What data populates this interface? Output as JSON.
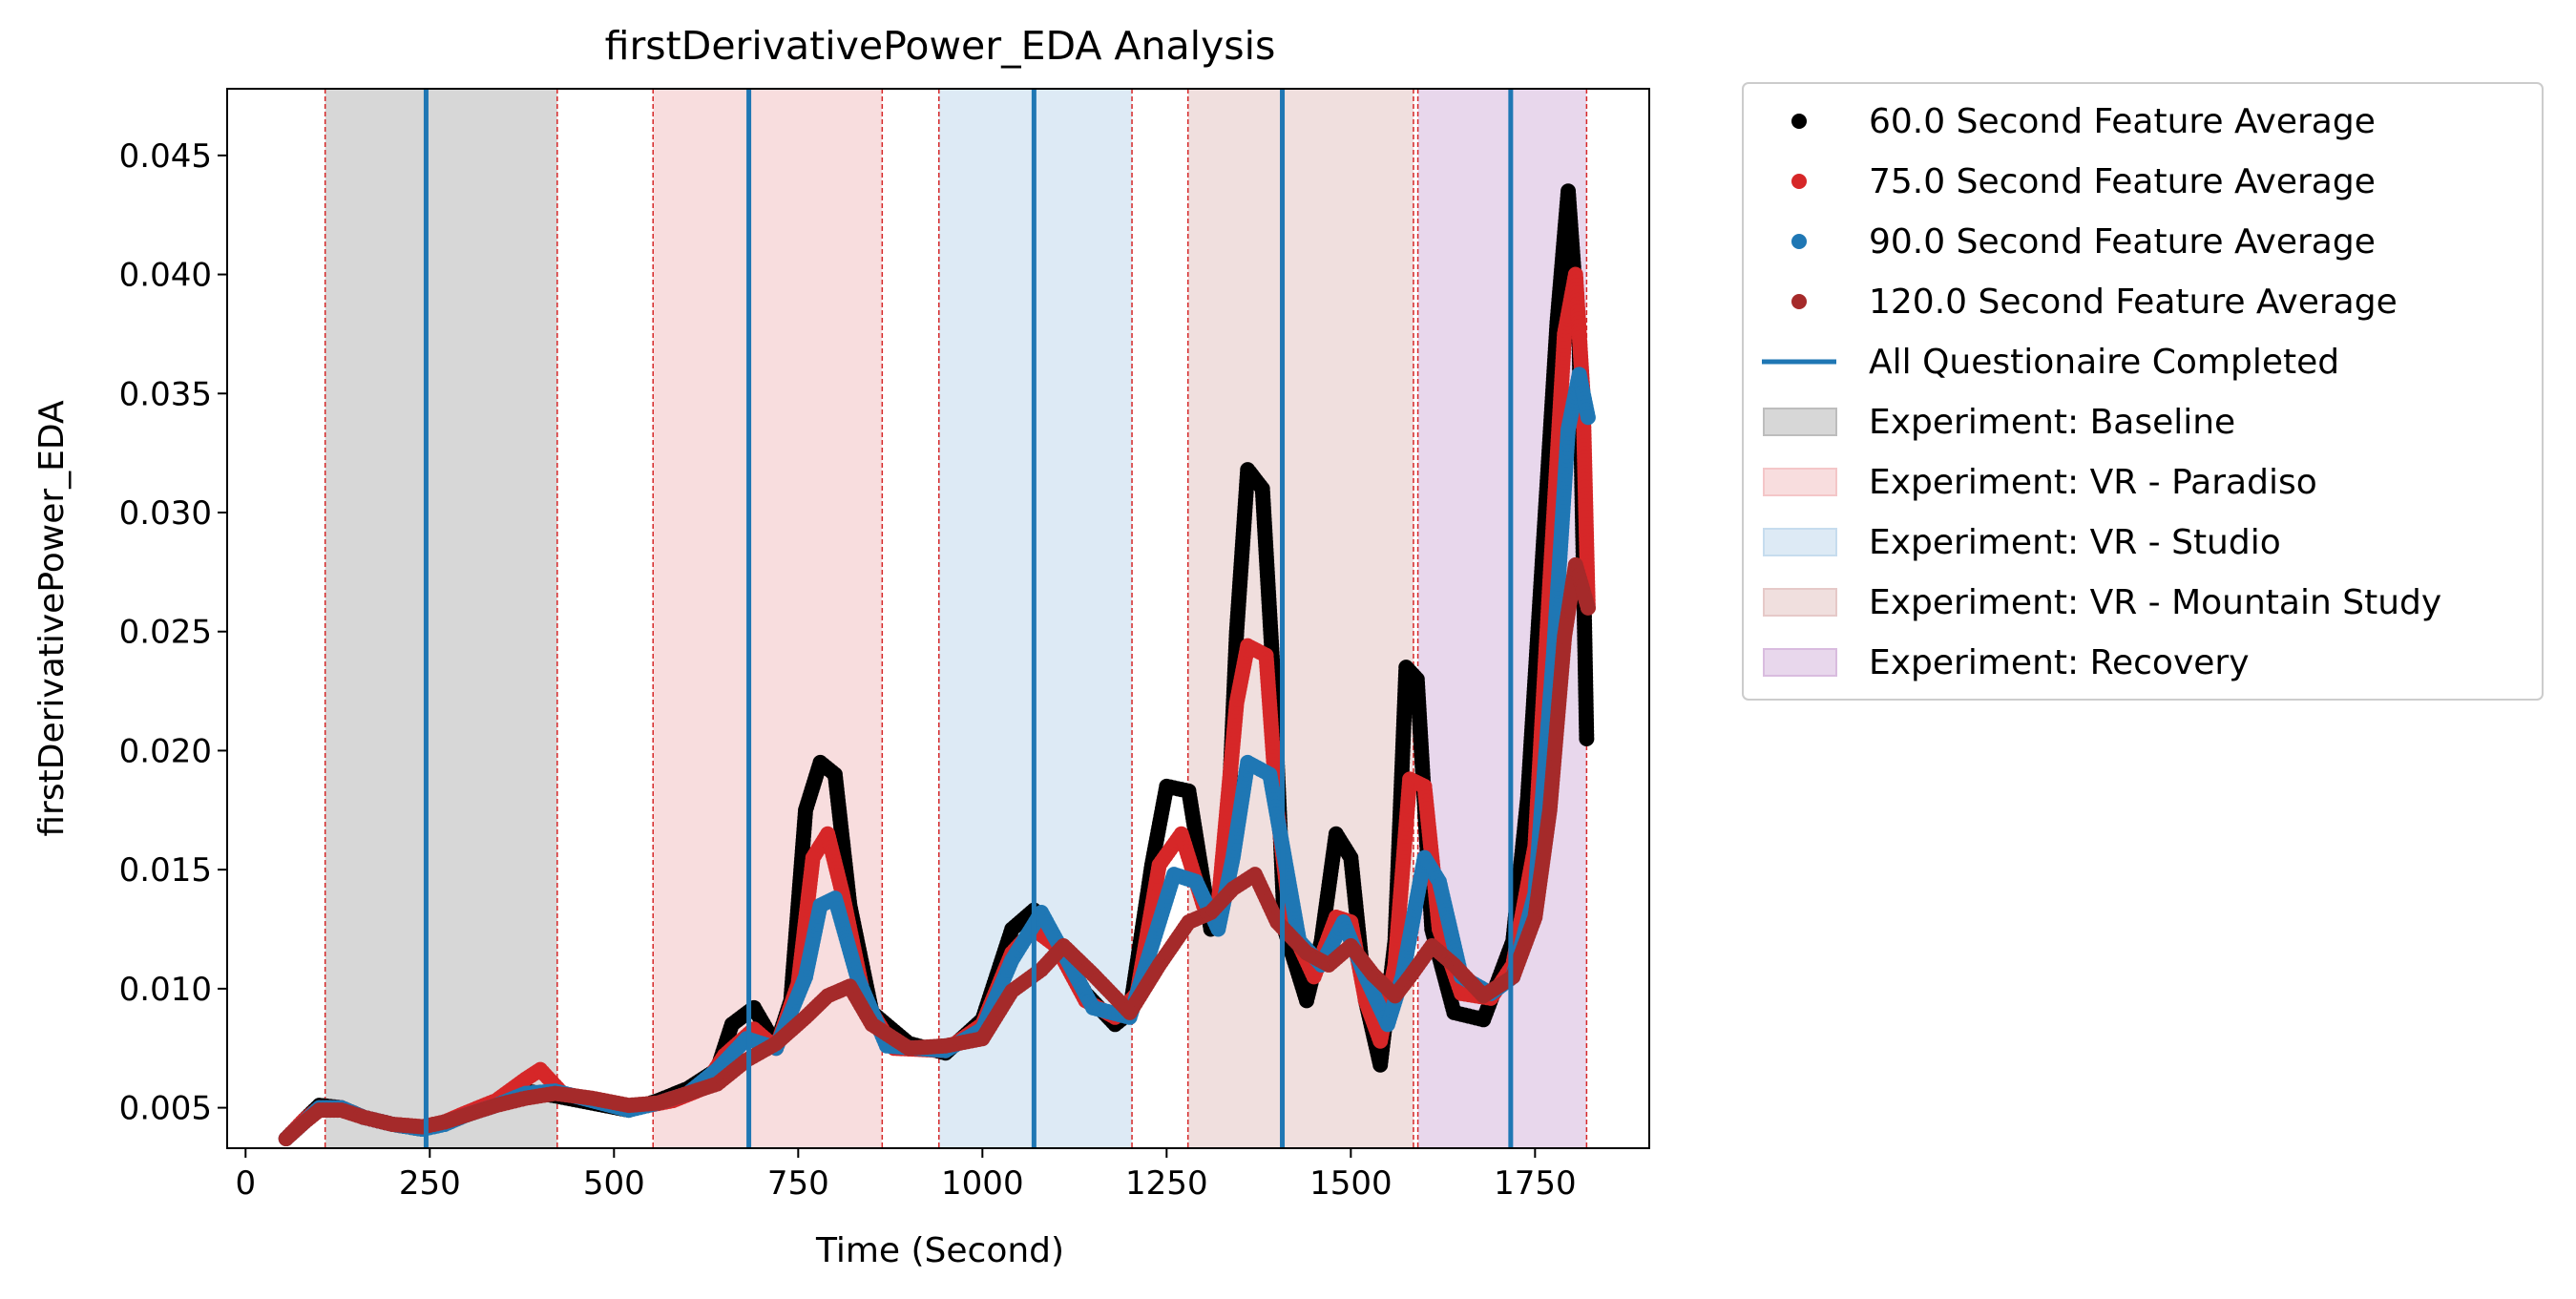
{
  "chart_data": {
    "type": "scatter",
    "title": "firstDerivativePower_EDA Analysis",
    "xlabel": "Time (Second)",
    "ylabel": "firstDerivativePower_EDA",
    "xlim": [
      -25,
      1905
    ],
    "ylim": [
      0.0033,
      0.0478
    ],
    "x_ticks": [
      0,
      250,
      500,
      750,
      1000,
      1250,
      1500,
      1750
    ],
    "x_tick_labels": [
      "0",
      "250",
      "500",
      "750",
      "1000",
      "1250",
      "1500",
      "1750"
    ],
    "y_ticks": [
      0.005,
      0.01,
      0.015,
      0.02,
      0.025,
      0.03,
      0.035,
      0.04,
      0.045
    ],
    "y_tick_labels": [
      "0.005",
      "0.010",
      "0.015",
      "0.020",
      "0.025",
      "0.030",
      "0.035",
      "0.040",
      "0.045"
    ],
    "grid": false,
    "legend_position": "outside-right",
    "series": [
      {
        "name": "60.0 Second Feature Average",
        "color": "#000000",
        "points": [
          [
            55,
            0.0037
          ],
          [
            80,
            0.0045
          ],
          [
            100,
            0.0051
          ],
          [
            130,
            0.005
          ],
          [
            160,
            0.0046
          ],
          [
            200,
            0.0043
          ],
          [
            240,
            0.0041
          ],
          [
            270,
            0.0044
          ],
          [
            300,
            0.0047
          ],
          [
            340,
            0.0052
          ],
          [
            380,
            0.0057
          ],
          [
            420,
            0.0055
          ],
          [
            470,
            0.0052
          ],
          [
            520,
            0.0049
          ],
          [
            560,
            0.0053
          ],
          [
            600,
            0.0058
          ],
          [
            640,
            0.0066
          ],
          [
            660,
            0.0085
          ],
          [
            690,
            0.0092
          ],
          [
            720,
            0.0076
          ],
          [
            740,
            0.0095
          ],
          [
            760,
            0.0175
          ],
          [
            780,
            0.0195
          ],
          [
            800,
            0.019
          ],
          [
            820,
            0.0135
          ],
          [
            850,
            0.009
          ],
          [
            900,
            0.0077
          ],
          [
            950,
            0.0073
          ],
          [
            1000,
            0.0087
          ],
          [
            1040,
            0.0125
          ],
          [
            1070,
            0.0133
          ],
          [
            1100,
            0.012
          ],
          [
            1140,
            0.0098
          ],
          [
            1180,
            0.0085
          ],
          [
            1200,
            0.009
          ],
          [
            1230,
            0.0152
          ],
          [
            1250,
            0.0185
          ],
          [
            1280,
            0.0183
          ],
          [
            1310,
            0.0125
          ],
          [
            1330,
            0.0145
          ],
          [
            1345,
            0.025
          ],
          [
            1360,
            0.0318
          ],
          [
            1380,
            0.031
          ],
          [
            1395,
            0.023
          ],
          [
            1410,
            0.0125
          ],
          [
            1440,
            0.0095
          ],
          [
            1460,
            0.012
          ],
          [
            1480,
            0.0165
          ],
          [
            1500,
            0.0155
          ],
          [
            1520,
            0.0095
          ],
          [
            1540,
            0.0068
          ],
          [
            1560,
            0.012
          ],
          [
            1575,
            0.0235
          ],
          [
            1590,
            0.023
          ],
          [
            1610,
            0.0125
          ],
          [
            1640,
            0.009
          ],
          [
            1680,
            0.0087
          ],
          [
            1720,
            0.012
          ],
          [
            1740,
            0.018
          ],
          [
            1760,
            0.028
          ],
          [
            1780,
            0.038
          ],
          [
            1795,
            0.0435
          ],
          [
            1810,
            0.037
          ],
          [
            1820,
            0.0205
          ]
        ]
      },
      {
        "name": "75.0 Second Feature Average",
        "color": "#d62728",
        "points": [
          [
            55,
            0.0037
          ],
          [
            80,
            0.0045
          ],
          [
            100,
            0.005
          ],
          [
            130,
            0.005
          ],
          [
            160,
            0.0046
          ],
          [
            200,
            0.0043
          ],
          [
            240,
            0.0042
          ],
          [
            270,
            0.0044
          ],
          [
            300,
            0.0048
          ],
          [
            340,
            0.0053
          ],
          [
            380,
            0.0062
          ],
          [
            400,
            0.0066
          ],
          [
            430,
            0.0056
          ],
          [
            480,
            0.0053
          ],
          [
            530,
            0.005
          ],
          [
            580,
            0.0053
          ],
          [
            620,
            0.0058
          ],
          [
            650,
            0.0072
          ],
          [
            690,
            0.0083
          ],
          [
            720,
            0.0075
          ],
          [
            750,
            0.0102
          ],
          [
            770,
            0.0155
          ],
          [
            790,
            0.0165
          ],
          [
            810,
            0.014
          ],
          [
            840,
            0.0095
          ],
          [
            880,
            0.0075
          ],
          [
            950,
            0.0074
          ],
          [
            1000,
            0.0085
          ],
          [
            1040,
            0.0115
          ],
          [
            1070,
            0.0125
          ],
          [
            1100,
            0.0118
          ],
          [
            1140,
            0.0095
          ],
          [
            1180,
            0.0088
          ],
          [
            1210,
            0.0098
          ],
          [
            1240,
            0.0152
          ],
          [
            1270,
            0.0165
          ],
          [
            1300,
            0.0135
          ],
          [
            1320,
            0.0135
          ],
          [
            1345,
            0.022
          ],
          [
            1360,
            0.0244
          ],
          [
            1385,
            0.024
          ],
          [
            1400,
            0.0175
          ],
          [
            1420,
            0.0125
          ],
          [
            1450,
            0.0105
          ],
          [
            1480,
            0.013
          ],
          [
            1500,
            0.0128
          ],
          [
            1520,
            0.0095
          ],
          [
            1540,
            0.0078
          ],
          [
            1560,
            0.011
          ],
          [
            1580,
            0.0188
          ],
          [
            1600,
            0.0185
          ],
          [
            1620,
            0.0125
          ],
          [
            1650,
            0.0098
          ],
          [
            1690,
            0.0096
          ],
          [
            1720,
            0.011
          ],
          [
            1750,
            0.016
          ],
          [
            1770,
            0.027
          ],
          [
            1790,
            0.0375
          ],
          [
            1805,
            0.04
          ],
          [
            1815,
            0.035
          ],
          [
            1822,
            0.026
          ]
        ]
      },
      {
        "name": "90.0 Second Feature Average",
        "color": "#1f77b4",
        "points": [
          [
            55,
            0.0037
          ],
          [
            80,
            0.0044
          ],
          [
            100,
            0.005
          ],
          [
            130,
            0.005
          ],
          [
            160,
            0.0046
          ],
          [
            200,
            0.0043
          ],
          [
            240,
            0.0041
          ],
          [
            270,
            0.0043
          ],
          [
            300,
            0.0047
          ],
          [
            340,
            0.0051
          ],
          [
            380,
            0.0056
          ],
          [
            420,
            0.0057
          ],
          [
            470,
            0.0053
          ],
          [
            520,
            0.0049
          ],
          [
            560,
            0.0052
          ],
          [
            600,
            0.0056
          ],
          [
            640,
            0.0066
          ],
          [
            680,
            0.0079
          ],
          [
            720,
            0.0075
          ],
          [
            760,
            0.0105
          ],
          [
            780,
            0.0135
          ],
          [
            800,
            0.0138
          ],
          [
            830,
            0.0105
          ],
          [
            870,
            0.0076
          ],
          [
            950,
            0.0074
          ],
          [
            1000,
            0.0083
          ],
          [
            1040,
            0.0112
          ],
          [
            1080,
            0.0132
          ],
          [
            1110,
            0.0115
          ],
          [
            1150,
            0.0092
          ],
          [
            1200,
            0.0088
          ],
          [
            1230,
            0.0118
          ],
          [
            1260,
            0.0148
          ],
          [
            1290,
            0.0145
          ],
          [
            1320,
            0.0125
          ],
          [
            1340,
            0.0155
          ],
          [
            1360,
            0.0195
          ],
          [
            1390,
            0.019
          ],
          [
            1410,
            0.0155
          ],
          [
            1430,
            0.012
          ],
          [
            1460,
            0.011
          ],
          [
            1490,
            0.0128
          ],
          [
            1520,
            0.0105
          ],
          [
            1550,
            0.0085
          ],
          [
            1570,
            0.0105
          ],
          [
            1600,
            0.0155
          ],
          [
            1620,
            0.0145
          ],
          [
            1650,
            0.0105
          ],
          [
            1690,
            0.0098
          ],
          [
            1720,
            0.0105
          ],
          [
            1750,
            0.014
          ],
          [
            1775,
            0.024
          ],
          [
            1795,
            0.0335
          ],
          [
            1810,
            0.0358
          ],
          [
            1822,
            0.034
          ]
        ]
      },
      {
        "name": "120.0 Second Feature Average",
        "color": "#a52a2a",
        "points": [
          [
            55,
            0.0037
          ],
          [
            80,
            0.0044
          ],
          [
            100,
            0.0049
          ],
          [
            130,
            0.0049
          ],
          [
            160,
            0.0046
          ],
          [
            200,
            0.0043
          ],
          [
            240,
            0.0042
          ],
          [
            270,
            0.0044
          ],
          [
            300,
            0.0047
          ],
          [
            340,
            0.0051
          ],
          [
            380,
            0.0054
          ],
          [
            420,
            0.0056
          ],
          [
            470,
            0.0054
          ],
          [
            520,
            0.0051
          ],
          [
            560,
            0.0052
          ],
          [
            600,
            0.0056
          ],
          [
            640,
            0.006
          ],
          [
            680,
            0.007
          ],
          [
            720,
            0.0077
          ],
          [
            760,
            0.0088
          ],
          [
            790,
            0.0097
          ],
          [
            820,
            0.0101
          ],
          [
            850,
            0.0085
          ],
          [
            900,
            0.0075
          ],
          [
            950,
            0.0076
          ],
          [
            1000,
            0.0079
          ],
          [
            1040,
            0.0099
          ],
          [
            1080,
            0.0108
          ],
          [
            1110,
            0.0118
          ],
          [
            1150,
            0.0106
          ],
          [
            1200,
            0.009
          ],
          [
            1240,
            0.011
          ],
          [
            1280,
            0.0128
          ],
          [
            1310,
            0.0132
          ],
          [
            1340,
            0.0142
          ],
          [
            1370,
            0.0148
          ],
          [
            1400,
            0.0128
          ],
          [
            1440,
            0.0115
          ],
          [
            1470,
            0.011
          ],
          [
            1500,
            0.0118
          ],
          [
            1530,
            0.0106
          ],
          [
            1560,
            0.0097
          ],
          [
            1580,
            0.0105
          ],
          [
            1610,
            0.0118
          ],
          [
            1640,
            0.011
          ],
          [
            1680,
            0.0097
          ],
          [
            1720,
            0.0105
          ],
          [
            1750,
            0.013
          ],
          [
            1770,
            0.0175
          ],
          [
            1790,
            0.0248
          ],
          [
            1805,
            0.0278
          ],
          [
            1822,
            0.026
          ]
        ]
      }
    ],
    "vertical_lines": {
      "name": "All Questionaire Completed",
      "color": "#1f77b4",
      "x": [
        245,
        683,
        1070,
        1407,
        1717
      ]
    },
    "spans": [
      {
        "name": "Experiment: Baseline",
        "color": "#bdbdbd",
        "start": 108,
        "end": 423
      },
      {
        "name": "Experiment: VR - Paradiso",
        "color": "#f4c6c8",
        "start": 553,
        "end": 864
      },
      {
        "name": "Experiment: VR - Studio",
        "color": "#c6dcee",
        "start": 941,
        "end": 1203
      },
      {
        "name": "Experiment: VR - Mountain Study",
        "color": "#e6c9c8",
        "start": 1279,
        "end": 1585
      },
      {
        "name": "Experiment: Recovery",
        "color": "#d9bcdf",
        "start": 1591,
        "end": 1820
      }
    ],
    "span_boundaries": [
      108,
      423,
      553,
      864,
      941,
      1203,
      1279,
      1585,
      1591,
      1820
    ],
    "boundary_color": "#d62728"
  },
  "legend": {
    "items": [
      {
        "label": "60.0 Second Feature Average",
        "kind": "marker",
        "color": "#000000"
      },
      {
        "label": "75.0 Second Feature Average",
        "kind": "marker",
        "color": "#d62728"
      },
      {
        "label": "90.0 Second Feature Average",
        "kind": "marker",
        "color": "#1f77b4"
      },
      {
        "label": "120.0 Second Feature Average",
        "kind": "marker",
        "color": "#a52a2a"
      },
      {
        "label": "All Questionaire Completed",
        "kind": "line",
        "color": "#1f77b4"
      },
      {
        "label": "Experiment: Baseline",
        "kind": "patch",
        "color": "#bdbdbd"
      },
      {
        "label": "Experiment: VR - Paradiso",
        "kind": "patch",
        "color": "#f4c6c8"
      },
      {
        "label": "Experiment: VR - Studio",
        "kind": "patch",
        "color": "#c6dcee"
      },
      {
        "label": "Experiment: VR - Mountain Study",
        "kind": "patch",
        "color": "#e6c9c8"
      },
      {
        "label": "Experiment: Recovery",
        "kind": "patch",
        "color": "#d9bcdf"
      }
    ]
  }
}
